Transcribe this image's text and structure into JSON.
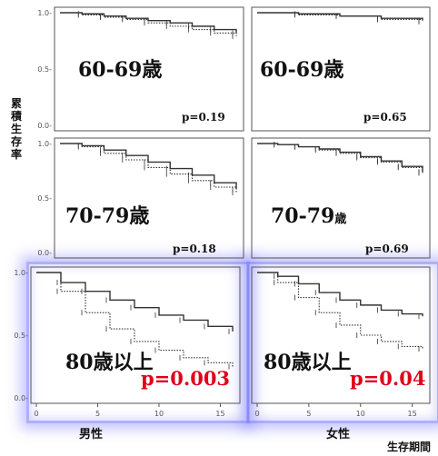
{
  "y_axis_label": "累積生存率",
  "x_axis_label": "生存期間",
  "column_labels": [
    "男性",
    "女性"
  ],
  "colors": {
    "curve": "#333333",
    "axis": "#555555",
    "grid": "#999999",
    "p_red": "#e0001a",
    "highlight": "#6e6ef5"
  },
  "chart_data": [
    {
      "type": "line",
      "panel_id": "male-60-69",
      "age_label": "60-69歳",
      "p_value": "p=0.19",
      "p_value_emphasis": false,
      "xlim": [
        0,
        16
      ],
      "ylim": [
        0,
        1
      ],
      "y_ticks": [
        {
          "v": 0,
          "label": "0.0-"
        },
        {
          "v": 0.5,
          "label": "0.5-"
        },
        {
          "v": 1,
          "label": "1.0-"
        }
      ],
      "x_ticks": [],
      "series": [
        {
          "style": "solid",
          "x": [
            0,
            2,
            4,
            6,
            8,
            10,
            12,
            14,
            16
          ],
          "y": [
            1.0,
            0.99,
            0.97,
            0.95,
            0.93,
            0.91,
            0.88,
            0.85,
            0.82
          ]
        },
        {
          "style": "dotted",
          "x": [
            0,
            2,
            4,
            6,
            8,
            10,
            12,
            14,
            16
          ],
          "y": [
            1.0,
            0.98,
            0.96,
            0.94,
            0.91,
            0.88,
            0.85,
            0.82,
            0.79
          ]
        }
      ]
    },
    {
      "type": "line",
      "panel_id": "female-60-69",
      "age_label": "60-69歳",
      "p_value": "p=0.65",
      "p_value_emphasis": false,
      "xlim": [
        0,
        16
      ],
      "ylim": [
        0,
        1
      ],
      "y_ticks": [],
      "x_ticks": [],
      "series": [
        {
          "style": "solid",
          "x": [
            0,
            4,
            8,
            12,
            16
          ],
          "y": [
            1.0,
            0.99,
            0.97,
            0.95,
            0.93
          ]
        },
        {
          "style": "dotted",
          "x": [
            0,
            4,
            8,
            12,
            16
          ],
          "y": [
            1.0,
            0.98,
            0.97,
            0.94,
            0.92
          ]
        }
      ]
    },
    {
      "type": "line",
      "panel_id": "male-70-79",
      "age_label": "70-79歳",
      "p_value": "p=0.18",
      "p_value_emphasis": false,
      "xlim": [
        0,
        16
      ],
      "ylim": [
        0,
        1
      ],
      "y_ticks": [
        {
          "v": 0,
          "label": "0.0-"
        },
        {
          "v": 0.5,
          "label": "0.5-"
        },
        {
          "v": 1,
          "label": "1.0-"
        }
      ],
      "x_ticks": [],
      "series": [
        {
          "style": "solid",
          "x": [
            0,
            2,
            4,
            6,
            8,
            10,
            12,
            14,
            16
          ],
          "y": [
            1.0,
            0.98,
            0.94,
            0.89,
            0.83,
            0.77,
            0.71,
            0.64,
            0.58
          ]
        },
        {
          "style": "dotted",
          "x": [
            0,
            2,
            4,
            6,
            8,
            10,
            12,
            14,
            16
          ],
          "y": [
            1.0,
            0.97,
            0.91,
            0.85,
            0.78,
            0.72,
            0.66,
            0.6,
            0.55
          ]
        }
      ]
    },
    {
      "type": "line",
      "panel_id": "female-70-79",
      "age_label": "70-79",
      "age_suffix": "歳",
      "p_value": "p=0.69",
      "p_value_emphasis": false,
      "xlim": [
        0,
        16
      ],
      "ylim": [
        0,
        1
      ],
      "y_ticks": [],
      "x_ticks": [],
      "series": [
        {
          "style": "solid",
          "x": [
            0,
            2,
            4,
            6,
            8,
            10,
            12,
            14,
            16
          ],
          "y": [
            1.0,
            0.99,
            0.97,
            0.95,
            0.92,
            0.88,
            0.84,
            0.79,
            0.74
          ]
        },
        {
          "style": "dotted",
          "x": [
            0,
            2,
            4,
            6,
            8,
            10,
            12,
            14,
            16
          ],
          "y": [
            1.0,
            0.99,
            0.97,
            0.94,
            0.91,
            0.87,
            0.83,
            0.78,
            0.73
          ]
        }
      ]
    },
    {
      "type": "line",
      "panel_id": "male-80plus",
      "age_label": "80歳以上",
      "p_value": "p=0.003",
      "p_value_emphasis": true,
      "xlim": [
        0,
        16
      ],
      "ylim": [
        0,
        1
      ],
      "y_ticks": [
        {
          "v": 0,
          "label": "0.0-"
        },
        {
          "v": 0.5,
          "label": "0.5-"
        },
        {
          "v": 1,
          "label": "1.0-"
        }
      ],
      "x_ticks": [
        {
          "v": 0,
          "label": "0"
        },
        {
          "v": 5,
          "label": "5"
        },
        {
          "v": 10,
          "label": "10"
        },
        {
          "v": 15,
          "label": "15"
        }
      ],
      "series": [
        {
          "style": "solid",
          "x": [
            0,
            2,
            4,
            6,
            8,
            10,
            12,
            14,
            16
          ],
          "y": [
            1.0,
            0.92,
            0.85,
            0.78,
            0.72,
            0.66,
            0.62,
            0.57,
            0.53
          ]
        },
        {
          "style": "dotted",
          "x": [
            0,
            2,
            4,
            6,
            8,
            10,
            12,
            14,
            16
          ],
          "y": [
            1.0,
            0.85,
            0.68,
            0.55,
            0.45,
            0.38,
            0.32,
            0.28,
            0.25
          ]
        }
      ]
    },
    {
      "type": "line",
      "panel_id": "female-80plus",
      "age_label": "80歳以上",
      "p_value": "p=0.04",
      "p_value_emphasis": true,
      "xlim": [
        0,
        16
      ],
      "ylim": [
        0,
        1
      ],
      "y_ticks": [],
      "x_ticks": [
        {
          "v": 0,
          "label": "0"
        },
        {
          "v": 5,
          "label": "5"
        },
        {
          "v": 10,
          "label": "10"
        },
        {
          "v": 15,
          "label": "15"
        }
      ],
      "series": [
        {
          "style": "solid",
          "x": [
            0,
            2,
            4,
            6,
            8,
            10,
            12,
            14,
            16
          ],
          "y": [
            1.0,
            0.97,
            0.91,
            0.84,
            0.78,
            0.74,
            0.7,
            0.67,
            0.65
          ]
        },
        {
          "style": "dotted",
          "x": [
            0,
            2,
            4,
            6,
            8,
            10,
            12,
            14,
            16
          ],
          "y": [
            1.0,
            0.92,
            0.8,
            0.68,
            0.58,
            0.5,
            0.45,
            0.41,
            0.39
          ]
        }
      ]
    }
  ]
}
